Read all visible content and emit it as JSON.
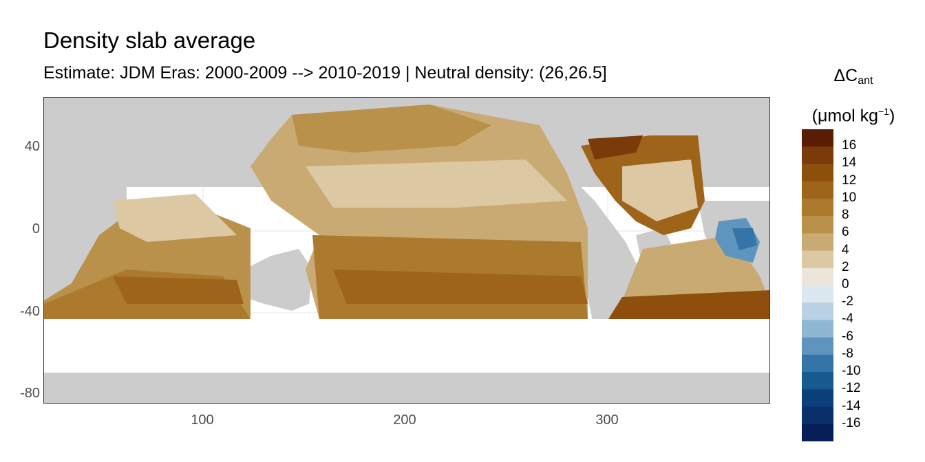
{
  "title": "Density slab average",
  "subtitle": "Estimate: JDM Eras: 2000-2009 --> 2010-2019 | Neutral density: (26,26.5]",
  "legend": {
    "title_main": "ΔC",
    "title_sub": "ant",
    "unit_prefix": "(μmol kg",
    "unit_sup": "−1",
    "unit_suffix": ")",
    "labels": [
      "16",
      "14",
      "12",
      "10",
      "8",
      "6",
      "4",
      "2",
      "0",
      "-2",
      "-4",
      "-6",
      "-8",
      "-10",
      "-12",
      "-14",
      "-16"
    ],
    "colors": [
      "#5a1c05",
      "#7a3a0a",
      "#8f4f0c",
      "#9e6419",
      "#ab7a2c",
      "#b9914b",
      "#c9aa72",
      "#dcc8a2",
      "#ece5d9",
      "#dce8ef",
      "#b9d2e3",
      "#8fb6d3",
      "#5e95bf",
      "#3474a6",
      "#175a90",
      "#0a3f7a",
      "#08306b",
      "#061e59"
    ]
  },
  "axes": {
    "x_ticks": [
      "100",
      "200",
      "300"
    ],
    "y_ticks": [
      "40",
      "0",
      "-40",
      "-80"
    ]
  },
  "colors": {
    "land": "#cccccc",
    "no_data": "#ffffff",
    "grid": "#ebebeb",
    "border": "#333333"
  },
  "chart_data": {
    "type": "heatmap",
    "title": "Density slab average",
    "subtitle": "Estimate: JDM Eras: 2000-2009 --> 2010-2019 | Neutral density: (26,26.5]",
    "xlim": [
      20,
      380
    ],
    "ylim": [
      -85,
      65
    ],
    "x_ticks": [
      100,
      200,
      300
    ],
    "y_ticks": [
      40,
      0,
      -40,
      -80
    ],
    "legend_title": "ΔCant (μmol kg−1)",
    "scale_range": [
      -16,
      16
    ]
  }
}
